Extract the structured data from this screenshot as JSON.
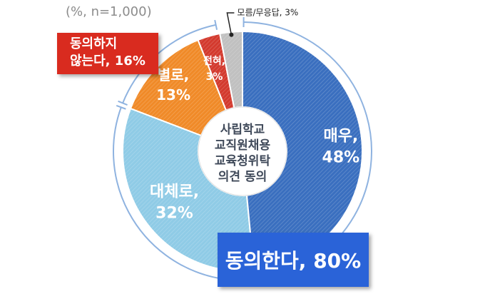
{
  "note": "(%, n=1,000)",
  "center_label": [
    "사립학교",
    "교직원채용",
    "교육청위탁",
    "의견 동의"
  ],
  "callouts": {
    "disagree": [
      "동의하지",
      "않는다, 16%"
    ],
    "agree": "동의한다, 80%",
    "unknown": "모름/무응답, 3%"
  },
  "slice_labels": [
    [
      "매우,",
      "48%"
    ],
    [
      "대체로,",
      "32%"
    ],
    [
      "별로,",
      "13%"
    ],
    [
      "전혀,",
      "3%"
    ]
  ],
  "colors": {
    "very_agree": "#3a6fbf",
    "somewhat_agree": "#8fcbe6",
    "not_really": "#f08a28",
    "not_at_all": "#d33a2e",
    "unknown": "#c0c0c0",
    "agree_box": "#2a63d8",
    "disagree_box": "#d92b1f",
    "bracket": "#8fb3e0"
  },
  "chart_data": {
    "type": "pie",
    "style": "donut",
    "title": "",
    "categories": [
      "매우",
      "대체로",
      "별로",
      "전혀",
      "모름/무응답"
    ],
    "values": [
      48,
      32,
      13,
      3,
      3
    ],
    "groups": [
      {
        "label": "동의한다",
        "value": 80,
        "members": [
          "매우",
          "대체로"
        ]
      },
      {
        "label": "동의하지 않는다",
        "value": 16,
        "members": [
          "별로",
          "전혀"
        ]
      }
    ]
  }
}
